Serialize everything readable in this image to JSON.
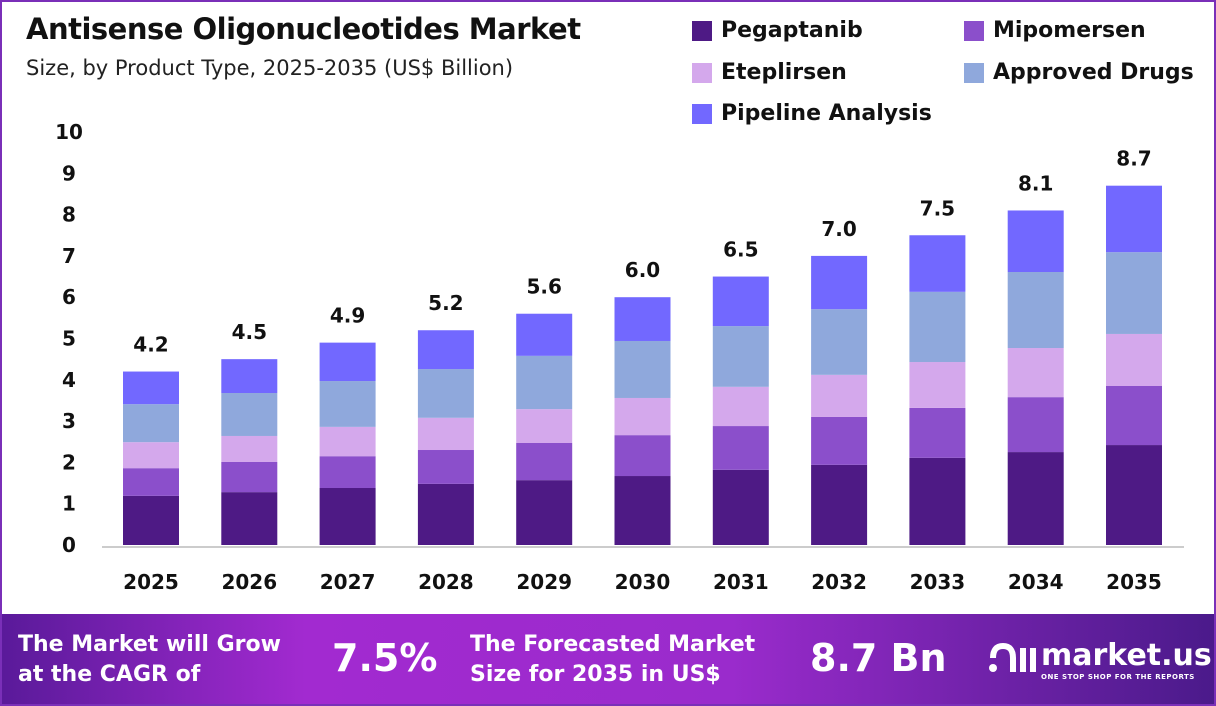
{
  "chart_data": {
    "type": "bar",
    "stacked": true,
    "title": "Antisense Oligonucleotides Market",
    "subtitle": "Size, by Product Type, 2025-2035 (US$ Billion)",
    "categories": [
      "2025",
      "2026",
      "2027",
      "2028",
      "2029",
      "2030",
      "2031",
      "2032",
      "2033",
      "2034",
      "2035"
    ],
    "series": [
      {
        "name": "Pegaptanib",
        "color": "#4E1A85",
        "values": [
          1.19,
          1.28,
          1.38,
          1.48,
          1.57,
          1.67,
          1.82,
          1.94,
          2.11,
          2.25,
          2.42
        ]
      },
      {
        "name": "Mipomersen",
        "color": "#8B4FCB",
        "values": [
          0.67,
          0.73,
          0.77,
          0.82,
          0.9,
          0.99,
          1.06,
          1.16,
          1.21,
          1.33,
          1.43
        ]
      },
      {
        "name": "Eteplirsen",
        "color": "#D4A8EC",
        "values": [
          0.63,
          0.63,
          0.71,
          0.78,
          0.82,
          0.9,
          0.95,
          1.02,
          1.11,
          1.19,
          1.26
        ]
      },
      {
        "name": "Approved Drugs",
        "color": "#8FA8DC",
        "values": [
          0.92,
          1.04,
          1.11,
          1.18,
          1.29,
          1.38,
          1.47,
          1.59,
          1.7,
          1.84,
          1.98
        ]
      },
      {
        "name": "Pipeline Analysis",
        "color": "#7268FF",
        "values": [
          0.79,
          0.82,
          0.93,
          0.94,
          1.02,
          1.06,
          1.2,
          1.29,
          1.37,
          1.49,
          1.61
        ]
      }
    ],
    "totals": [
      "4.2",
      "4.5",
      "4.9",
      "5.2",
      "5.6",
      "6.0",
      "6.5",
      "7.0",
      "7.5",
      "8.1",
      "8.7"
    ],
    "yticks": [
      "0",
      "1",
      "2",
      "3",
      "4",
      "5",
      "6",
      "7",
      "8",
      "9",
      "10"
    ],
    "ylim": [
      0,
      10
    ],
    "grid": false,
    "legend_position": "top-right"
  },
  "banner": {
    "cagr_text_1": "The Market will Grow",
    "cagr_text_2": "at the CAGR of",
    "cagr_value": "7.5%",
    "forecast_text_1": "The Forecasted Market",
    "forecast_text_2": "Size for 2035 in US$",
    "forecast_value": "8.7 Bn",
    "logo_name": "market.us",
    "logo_tagline": "ONE STOP SHOP FOR THE REPORTS"
  }
}
